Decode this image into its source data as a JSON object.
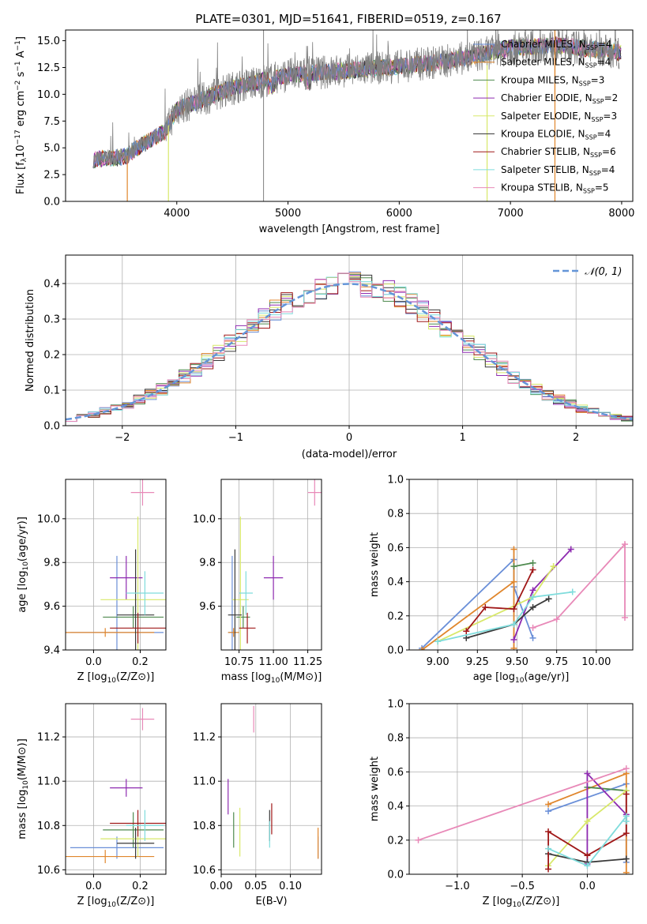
{
  "colors": {
    "c0": "#6a8fd8",
    "c1": "#e0862c",
    "c2": "#4f8a4f",
    "c3": "#8e2bb0",
    "c4": "#d8e86a",
    "c5": "#3a3a3a",
    "c6": "#a01818",
    "c7": "#7fdcdc",
    "c8": "#e889b8",
    "gray": "#808080",
    "dash": "#6495d8"
  },
  "chart_data": [
    {
      "type": "line",
      "title": "PLATE=0301, MJD=51641, FIBERID=0519, z=0.167",
      "xlabel": "wavelength [Angstrom, rest frame]",
      "ylabel": "Flux [f_λ 10⁻¹⁷ erg cm⁻² s⁻¹ A⁻¹]",
      "xlim": [
        3000,
        8100
      ],
      "ylim": [
        0,
        16
      ],
      "xticks": [
        "4000",
        "5000",
        "6000",
        "7000",
        "8000"
      ],
      "yticks": [
        "0.0",
        "2.5",
        "5.0",
        "7.5",
        "10.0",
        "12.5",
        "15.0"
      ],
      "legend_position": "right",
      "series": [
        {
          "name": "Chabrier MILES, N_SSP=4",
          "ssp": "4"
        },
        {
          "name": "Salpeter MILES, N_SSP=4",
          "ssp": "4"
        },
        {
          "name": "Kroupa MILES, N_SSP=3",
          "ssp": "3"
        },
        {
          "name": "Chabrier ELODIE, N_SSP=2",
          "ssp": "2"
        },
        {
          "name": "Salpeter ELODIE, N_SSP=3",
          "ssp": "3"
        },
        {
          "name": "Kroupa ELODIE, N_SSP=4",
          "ssp": "4"
        },
        {
          "name": "Chabrier STELIB, N_SSP=6",
          "ssp": "6"
        },
        {
          "name": "Salpeter STELIB, N_SSP=4",
          "ssp": "4"
        },
        {
          "name": "Kroupa STELIB, N_SSP=5",
          "ssp": "5"
        }
      ],
      "continuum": {
        "x": [
          3250,
          3550,
          3600,
          3900,
          4000,
          4500,
          5000,
          5500,
          6000,
          6500,
          7000,
          7400,
          8000
        ],
        "y": [
          3.9,
          4.2,
          4.7,
          6.6,
          8.6,
          10.6,
          11.8,
          12.2,
          12.6,
          13.2,
          14.3,
          14.6,
          13.9
        ]
      }
    },
    {
      "type": "line",
      "xlabel": "(data-model)/error",
      "ylabel": "Normed distribution",
      "xlim": [
        -2.5,
        2.5
      ],
      "ylim": [
        0,
        0.48
      ],
      "xticks": [
        "−2",
        "−1",
        "0",
        "1",
        "2"
      ],
      "yticks": [
        "0.0",
        "0.1",
        "0.2",
        "0.3",
        "0.4"
      ],
      "legend": "N(0,1)",
      "legend_position": "top-right",
      "grid": true,
      "bin_width": 0.1
    },
    {
      "type": "scatter",
      "xlabel": "Z [log10(Z/Z⊙)]",
      "ylabel": "age [log10(age/yr)]",
      "xlim": [
        -0.12,
        0.31
      ],
      "ylim": [
        9.4,
        10.18
      ],
      "xticks": [
        "0.0",
        "0.2"
      ],
      "yticks": [
        "9.4",
        "9.6",
        "9.8",
        "10.0"
      ],
      "points": [
        {
          "c": "c0",
          "x": 0.1,
          "xe": 0.2,
          "y": 9.48,
          "ye": 0.35
        },
        {
          "c": "c1",
          "x": 0.05,
          "xe": 0.21,
          "y": 9.48,
          "ye": 0.02
        },
        {
          "c": "c2",
          "x": 0.17,
          "xe": 0.13,
          "y": 9.55,
          "ye": 0.05
        },
        {
          "c": "c3",
          "x": 0.14,
          "xe": 0.07,
          "y": 9.73,
          "ye": 0.1
        },
        {
          "c": "c4",
          "x": 0.19,
          "xe": 0.16,
          "y": 9.63,
          "ye": 0.38
        },
        {
          "c": "c5",
          "x": 0.18,
          "xe": 0.08,
          "y": 9.56,
          "ye": 0.3
        },
        {
          "c": "c6",
          "x": 0.19,
          "xe": 0.12,
          "y": 9.5,
          "ye": 0.07
        },
        {
          "c": "c7",
          "x": 0.22,
          "xe": 0.08,
          "y": 9.66,
          "ye": 0.1
        },
        {
          "c": "c8",
          "x": 0.21,
          "xe": 0.05,
          "y": 10.12,
          "ye": 0.06
        }
      ]
    },
    {
      "type": "scatter",
      "xlabel": "mass [log10(M/M⊙)]",
      "xlim": [
        10.62,
        11.35
      ],
      "ylim": [
        9.4,
        10.18
      ],
      "xticks": [
        "10.75",
        "11.00",
        "11.25"
      ],
      "yticks": [
        "9.6",
        "9.8",
        "10.0"
      ],
      "points": [
        {
          "c": "c0",
          "x": 10.7,
          "xe": 0.03,
          "y": 9.48,
          "ye": 0.35
        },
        {
          "c": "c1",
          "x": 10.71,
          "xe": 0.04,
          "y": 9.48,
          "ye": 0.02
        },
        {
          "c": "c2",
          "x": 10.78,
          "xe": 0.05,
          "y": 9.55,
          "ye": 0.05
        },
        {
          "c": "c3",
          "x": 11.0,
          "xe": 0.07,
          "y": 9.73,
          "ye": 0.1
        },
        {
          "c": "c4",
          "x": 10.76,
          "xe": 0.06,
          "y": 9.63,
          "ye": 0.38
        },
        {
          "c": "c5",
          "x": 10.72,
          "xe": 0.05,
          "y": 9.56,
          "ye": 0.3
        },
        {
          "c": "c6",
          "x": 10.81,
          "xe": 0.06,
          "y": 9.5,
          "ye": 0.07
        },
        {
          "c": "c7",
          "x": 10.8,
          "xe": 0.05,
          "y": 9.66,
          "ye": 0.1
        },
        {
          "c": "c8",
          "x": 11.3,
          "xe": 0.05,
          "y": 10.12,
          "ye": 0.06
        }
      ]
    },
    {
      "type": "line",
      "xlabel": "age [log10(age/yr)]",
      "ylabel": "mass weight",
      "xlim": [
        8.82,
        10.23
      ],
      "ylim": [
        0,
        1
      ],
      "xticks": [
        "9.00",
        "9.25",
        "9.50",
        "9.75",
        "10.00"
      ],
      "yticks": [
        "0.0",
        "0.2",
        "0.4",
        "0.6",
        "0.8",
        "1.0"
      ],
      "series": [
        {
          "c": "c0",
          "x": [
            8.9,
            9.48,
            9.48,
            9.6
          ],
          "y": [
            0.01,
            0.53,
            0.37,
            0.07
          ]
        },
        {
          "c": "c1",
          "x": [
            8.9,
            9.48,
            9.48,
            9.48
          ],
          "y": [
            0.0,
            0.4,
            0.59,
            0.01
          ]
        },
        {
          "c": "c2",
          "x": [
            9.48,
            9.6
          ],
          "y": [
            0.49,
            0.51
          ]
        },
        {
          "c": "c3",
          "x": [
            9.48,
            9.6,
            9.84
          ],
          "y": [
            0.06,
            0.35,
            0.59
          ]
        },
        {
          "c": "c4",
          "x": [
            9.0,
            9.6,
            9.73,
            9.73
          ],
          "y": [
            0.05,
            0.31,
            0.49,
            0.49
          ]
        },
        {
          "c": "c5",
          "x": [
            9.18,
            9.48,
            9.6,
            9.7
          ],
          "y": [
            0.07,
            0.15,
            0.25,
            0.3
          ]
        },
        {
          "c": "c6",
          "x": [
            9.18,
            9.3,
            9.48,
            9.6
          ],
          "y": [
            0.11,
            0.25,
            0.24,
            0.47
          ]
        },
        {
          "c": "c7",
          "x": [
            9.0,
            9.48,
            9.6,
            9.85
          ],
          "y": [
            0.05,
            0.15,
            0.31,
            0.34
          ]
        },
        {
          "c": "c8",
          "x": [
            9.6,
            9.75,
            10.18,
            10.18
          ],
          "y": [
            0.13,
            0.18,
            0.62,
            0.19
          ]
        }
      ]
    },
    {
      "type": "scatter",
      "xlabel": "Z [log10(Z/Z⊙)]",
      "ylabel": "mass [log10(M/M⊙)]",
      "xlim": [
        -0.12,
        0.31
      ],
      "ylim": [
        10.58,
        11.35
      ],
      "xticks": [
        "0.0",
        "0.2"
      ],
      "yticks": [
        "10.6",
        "10.8",
        "11.0",
        "11.2"
      ],
      "points": [
        {
          "c": "c0",
          "x": 0.1,
          "xe": 0.2,
          "y": 10.7,
          "ye": 0.05
        },
        {
          "c": "c1",
          "x": 0.05,
          "xe": 0.21,
          "y": 10.66,
          "ye": 0.03
        },
        {
          "c": "c2",
          "x": 0.17,
          "xe": 0.13,
          "y": 10.78,
          "ye": 0.08
        },
        {
          "c": "c3",
          "x": 0.14,
          "xe": 0.07,
          "y": 10.97,
          "ye": 0.04
        },
        {
          "c": "c4",
          "x": 0.19,
          "xe": 0.16,
          "y": 10.74,
          "ye": 0.08
        },
        {
          "c": "c5",
          "x": 0.18,
          "xe": 0.08,
          "y": 10.72,
          "ye": 0.07
        },
        {
          "c": "c6",
          "x": 0.19,
          "xe": 0.12,
          "y": 10.81,
          "ye": 0.06
        },
        {
          "c": "c7",
          "x": 0.22,
          "xe": 0.08,
          "y": 10.8,
          "ye": 0.07
        },
        {
          "c": "c8",
          "x": 0.21,
          "xe": 0.05,
          "y": 11.28,
          "ye": 0.05
        }
      ]
    },
    {
      "type": "scatter",
      "xlabel": "E(B-V)",
      "xlim": [
        0.0,
        0.145
      ],
      "ylim": [
        10.58,
        11.35
      ],
      "xticks": [
        "0.00",
        "0.05",
        "0.10"
      ],
      "yticks": [
        "10.6",
        "10.8",
        "11.0",
        "11.2"
      ],
      "points": [
        {
          "c": "c0",
          "x": 0.14,
          "y": 10.7,
          "ye": 0.05
        },
        {
          "c": "c1",
          "x": 0.14,
          "y": 10.72,
          "ye": 0.07
        },
        {
          "c": "c2",
          "x": 0.018,
          "y": 10.78,
          "ye": 0.08
        },
        {
          "c": "c3",
          "x": 0.01,
          "y": 10.93,
          "ye": 0.08
        },
        {
          "c": "c4",
          "x": 0.027,
          "y": 10.77,
          "ye": 0.11
        },
        {
          "c": "c5",
          "x": 0.07,
          "y": 10.8,
          "ye": 0.07
        },
        {
          "c": "c6",
          "x": 0.073,
          "y": 10.83,
          "ye": 0.07
        },
        {
          "c": "c7",
          "x": 0.07,
          "y": 10.76,
          "ye": 0.06
        },
        {
          "c": "c8",
          "x": 0.047,
          "y": 11.28,
          "ye": 0.06
        }
      ]
    },
    {
      "type": "line",
      "xlabel": "Z [log10(Z/Z⊙)]",
      "ylabel": "mass weight",
      "xlim": [
        -1.37,
        0.35
      ],
      "ylim": [
        0,
        1
      ],
      "xticks": [
        "−1.0",
        "−0.5",
        "0.0"
      ],
      "yticks": [
        "0.0",
        "0.2",
        "0.4",
        "0.6",
        "0.8",
        "1.0"
      ],
      "series": [
        {
          "c": "c0",
          "x": [
            -0.3,
            0.3,
            0.3
          ],
          "y": [
            0.37,
            0.53,
            0.07
          ]
        },
        {
          "c": "c1",
          "x": [
            -0.3,
            0.3,
            0.3
          ],
          "y": [
            0.41,
            0.59,
            0.01
          ]
        },
        {
          "c": "c2",
          "x": [
            0.0,
            0.3
          ],
          "y": [
            0.51,
            0.49
          ]
        },
        {
          "c": "c3",
          "x": [
            0.0,
            0.0,
            0.3
          ],
          "y": [
            0.06,
            0.59,
            0.35
          ]
        },
        {
          "c": "c4",
          "x": [
            -0.3,
            0.0,
            0.3
          ],
          "y": [
            0.05,
            0.31,
            0.49
          ]
        },
        {
          "c": "c5",
          "x": [
            -0.3,
            0.0,
            0.3
          ],
          "y": [
            0.12,
            0.07,
            0.09
          ]
        },
        {
          "c": "c6",
          "x": [
            -0.3,
            -0.3,
            0.0,
            0.3,
            0.3
          ],
          "y": [
            0.03,
            0.25,
            0.11,
            0.24,
            0.47
          ]
        },
        {
          "c": "c7",
          "x": [
            -0.3,
            0.0,
            0.3,
            0.3
          ],
          "y": [
            0.15,
            0.05,
            0.34,
            0.31
          ]
        },
        {
          "c": "c8",
          "x": [
            -1.3,
            0.3
          ],
          "y": [
            0.2,
            0.62
          ]
        }
      ]
    }
  ]
}
